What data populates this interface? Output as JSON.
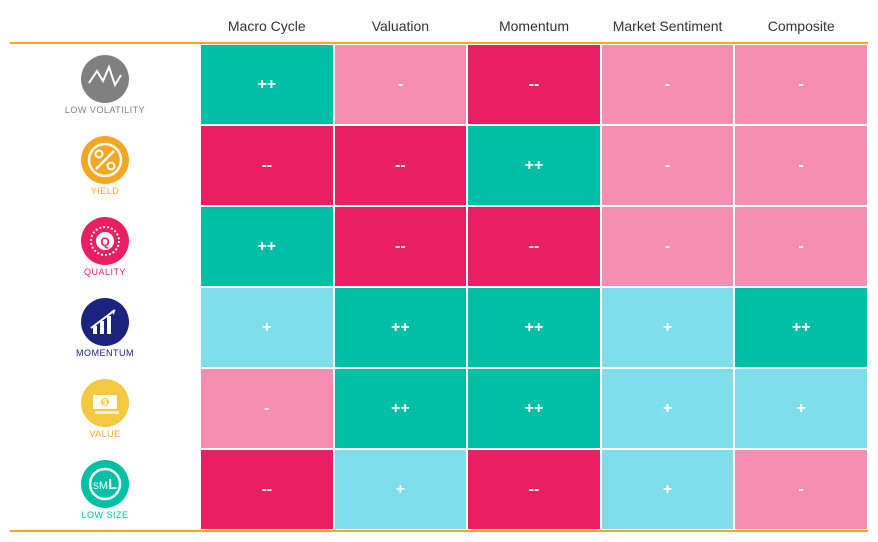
{
  "heatmap": {
    "type": "heatmap",
    "columns": [
      "Macro Cycle",
      "Valuation",
      "Momentum",
      "Market Sentiment",
      "Composite"
    ],
    "rows": [
      {
        "label": "LOW VOLATILITY",
        "labelColor": "#808080",
        "iconBg": "#808080",
        "iconType": "volatility",
        "cells": [
          {
            "value": "++",
            "bg": "#00bfa5"
          },
          {
            "value": "-",
            "bg": "#f48fb1"
          },
          {
            "value": "--",
            "bg": "#e91e63"
          },
          {
            "value": "-",
            "bg": "#f48fb1"
          },
          {
            "value": "-",
            "bg": "#f48fb1"
          }
        ]
      },
      {
        "label": "YIELD",
        "labelColor": "#f5a623",
        "iconBg": "#f5a623",
        "iconType": "percent",
        "cells": [
          {
            "value": "--",
            "bg": "#e91e63"
          },
          {
            "value": "--",
            "bg": "#e91e63"
          },
          {
            "value": "++",
            "bg": "#00bfa5"
          },
          {
            "value": "-",
            "bg": "#f48fb1"
          },
          {
            "value": "-",
            "bg": "#f48fb1"
          }
        ]
      },
      {
        "label": "QUALITY",
        "labelColor": "#e91e63",
        "iconBg": "#e91e63",
        "iconType": "quality",
        "cells": [
          {
            "value": "++",
            "bg": "#00bfa5"
          },
          {
            "value": "--",
            "bg": "#e91e63"
          },
          {
            "value": "--",
            "bg": "#e91e63"
          },
          {
            "value": "-",
            "bg": "#f48fb1"
          },
          {
            "value": "-",
            "bg": "#f48fb1"
          }
        ]
      },
      {
        "label": "MOMENTUM",
        "labelColor": "#1a237e",
        "iconBg": "#1a237e",
        "iconType": "momentum",
        "cells": [
          {
            "value": "+",
            "bg": "#80deea"
          },
          {
            "value": "++",
            "bg": "#00bfa5"
          },
          {
            "value": "++",
            "bg": "#00bfa5"
          },
          {
            "value": "+",
            "bg": "#80deea"
          },
          {
            "value": "++",
            "bg": "#00bfa5"
          }
        ]
      },
      {
        "label": "VALUE",
        "labelColor": "#f5a623",
        "iconBg": "#f5c842",
        "iconType": "value",
        "cells": [
          {
            "value": "-",
            "bg": "#f48fb1"
          },
          {
            "value": "++",
            "bg": "#00bfa5"
          },
          {
            "value": "++",
            "bg": "#00bfa5"
          },
          {
            "value": "+",
            "bg": "#80deea"
          },
          {
            "value": "+",
            "bg": "#80deea"
          }
        ]
      },
      {
        "label": "LOW SIZE",
        "labelColor": "#00bfa5",
        "iconBg": "#00bfa5",
        "iconType": "size",
        "cells": [
          {
            "value": "--",
            "bg": "#e91e63"
          },
          {
            "value": "+",
            "bg": "#80deea"
          },
          {
            "value": "--",
            "bg": "#e91e63"
          },
          {
            "value": "+",
            "bg": "#80deea"
          },
          {
            "value": "-",
            "bg": "#f48fb1"
          }
        ]
      }
    ],
    "style": {
      "borderColor": "#f5a623",
      "cellBorderColor": "#ffffff",
      "headerFontSize": 14,
      "labelFontSize": 9,
      "cellFontSize": 16,
      "cellHeight": 81,
      "rowHeaderWidth": 190,
      "iconSize": 48
    }
  }
}
